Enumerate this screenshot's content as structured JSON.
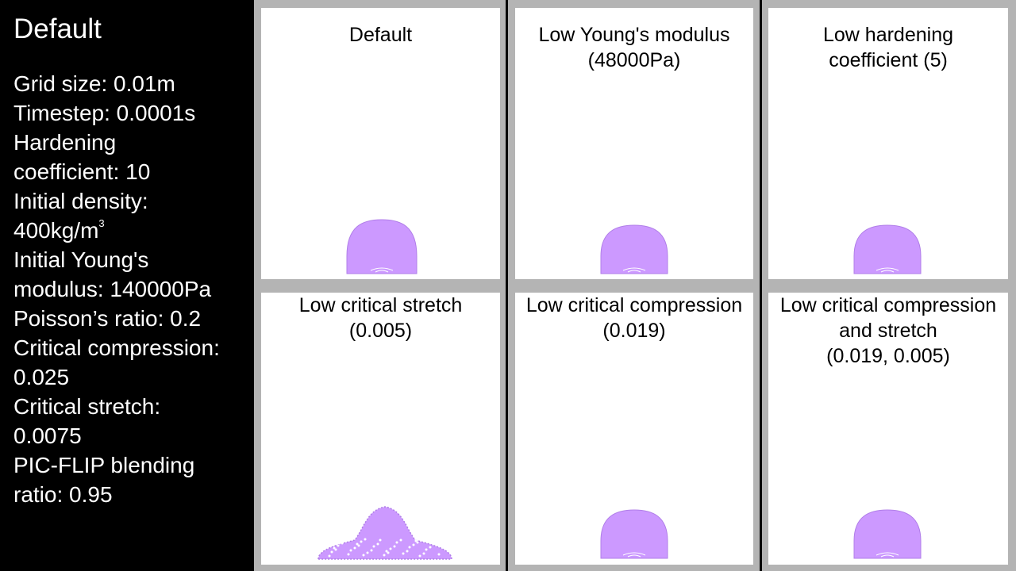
{
  "sidebar": {
    "heading": "Default",
    "lines": [
      "Grid size: 0.01m",
      "Timestep: 0.0001s",
      "Hardening",
      "coefficient: 10",
      "Initial density:",
      "400kg/m",
      "Initial Young's",
      "modulus: 140000Pa",
      "Poisson’s ratio: 0.2",
      "Critical compression:",
      "0.025",
      "Critical stretch:",
      "0.0075",
      "PIC-FLIP blending",
      "ratio: 0.95"
    ],
    "density_exponent": "3"
  },
  "panels": [
    {
      "title_lines": [
        "Default"
      ],
      "shape": "dome-large"
    },
    {
      "title_lines": [
        "Low Young's modulus",
        "(48000Pa)"
      ],
      "shape": "dome-small"
    },
    {
      "title_lines": [
        "Low hardening",
        "coefficient (5)"
      ],
      "shape": "dome-small"
    },
    {
      "title_lines": [
        "Low critical stretch",
        "(0.005)"
      ],
      "shape": "spread"
    },
    {
      "title_lines": [
        "Low critical compression",
        "(0.019)"
      ],
      "shape": "dome-small"
    },
    {
      "title_lines": [
        "Low critical compression",
        "and stretch",
        "(0.019, 0.005)"
      ],
      "shape": "dome-small"
    }
  ],
  "colors": {
    "particle": "#cc99ff",
    "particle_edge": "#b07ee8",
    "panel_border": "#b4b4b4"
  }
}
